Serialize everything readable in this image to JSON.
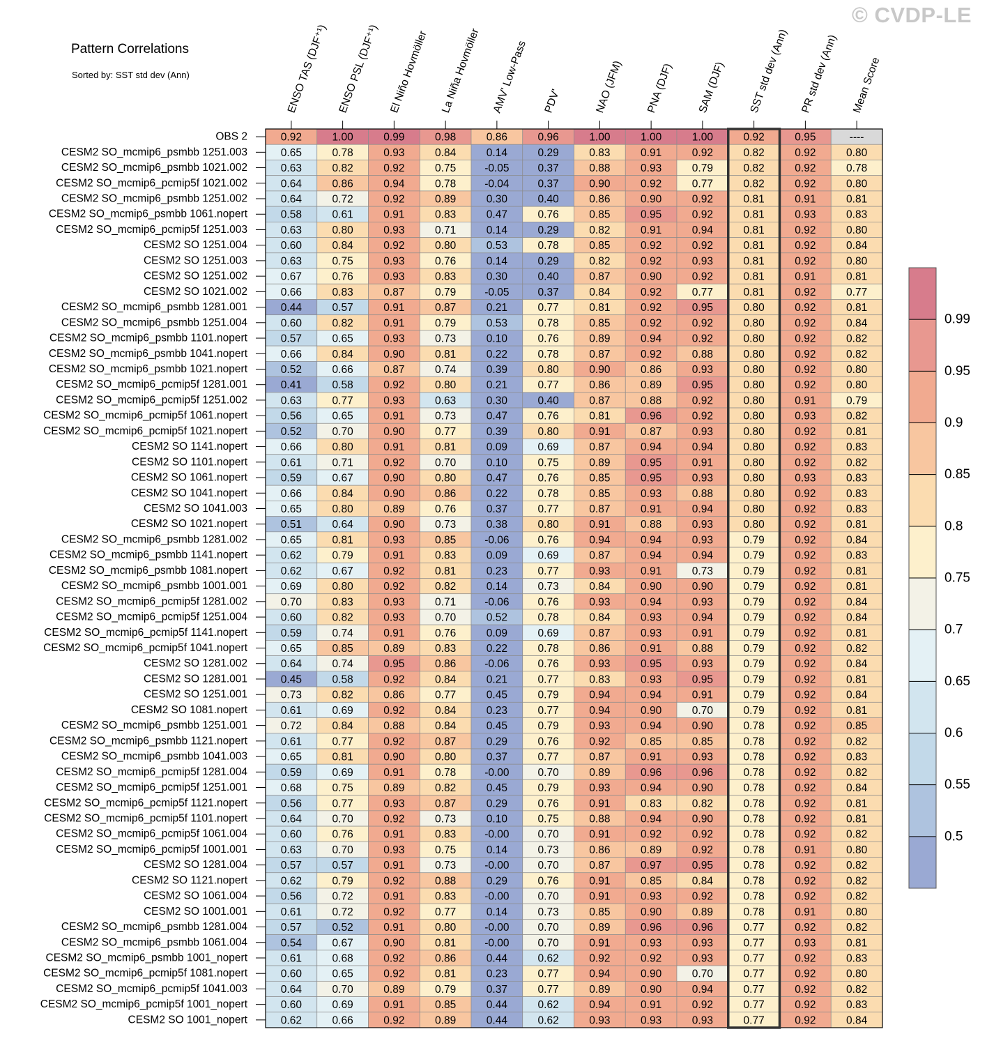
{
  "page": {
    "title": "Pattern Correlations",
    "subtitle": "Sorted by: SST std dev (Ann)",
    "watermark": "© CVDP-LE"
  },
  "chart_data": {
    "type": "heatmap",
    "title": "Pattern Correlations",
    "subtitle": "Sorted by: SST std dev (Ann)",
    "columns": [
      "ENSO TAS (DJF⁺¹)",
      "ENSO PSL (DJF⁺¹)",
      "El Niño Hovmöller",
      "La Niña Hovmöller",
      "AMV' Low-Pass",
      "PDV'",
      "NAO (JFM)",
      "PNA (DJF)",
      "SAM (DJF)",
      "SST std dev (Ann)",
      "PR std dev (Ann)",
      "Mean Score"
    ],
    "highlighted_column": "SST std dev (Ann)",
    "rows": [
      {
        "label": "OBS 2",
        "values": [
          "0.92",
          "1.00",
          "0.99",
          "0.98",
          "0.86",
          "0.96",
          "1.00",
          "1.00",
          "1.00",
          "0.92",
          "0.95",
          "----"
        ]
      },
      {
        "label": "CESM2 SO_mcmip6_psmbb 1251.003",
        "values": [
          "0.65",
          "0.78",
          "0.93",
          "0.84",
          "0.14",
          "0.29",
          "0.83",
          "0.91",
          "0.92",
          "0.82",
          "0.92",
          "0.80"
        ]
      },
      {
        "label": "CESM2 SO_mcmip6_psmbb 1021.002",
        "values": [
          "0.63",
          "0.82",
          "0.92",
          "0.75",
          "-0.05",
          "0.37",
          "0.88",
          "0.93",
          "0.79",
          "0.82",
          "0.92",
          "0.78"
        ]
      },
      {
        "label": "CESM2 SO_mcmip6_pcmip5f 1021.002",
        "values": [
          "0.64",
          "0.86",
          "0.94",
          "0.78",
          "-0.04",
          "0.37",
          "0.90",
          "0.92",
          "0.77",
          "0.82",
          "0.92",
          "0.80"
        ]
      },
      {
        "label": "CESM2 SO_mcmip6_psmbb 1251.002",
        "values": [
          "0.64",
          "0.72",
          "0.92",
          "0.89",
          "0.30",
          "0.40",
          "0.86",
          "0.90",
          "0.92",
          "0.81",
          "0.91",
          "0.81"
        ]
      },
      {
        "label": "CESM2 SO_mcmip6_psmbb 1061.nopert",
        "values": [
          "0.58",
          "0.61",
          "0.91",
          "0.83",
          "0.47",
          "0.76",
          "0.85",
          "0.95",
          "0.92",
          "0.81",
          "0.93",
          "0.83"
        ]
      },
      {
        "label": "CESM2 SO_mcmip6_pcmip5f 1251.003",
        "values": [
          "0.63",
          "0.80",
          "0.93",
          "0.71",
          "0.14",
          "0.29",
          "0.82",
          "0.91",
          "0.94",
          "0.81",
          "0.92",
          "0.80"
        ]
      },
      {
        "label": "CESM2 SO 1251.004",
        "values": [
          "0.60",
          "0.84",
          "0.92",
          "0.80",
          "0.53",
          "0.78",
          "0.85",
          "0.92",
          "0.92",
          "0.81",
          "0.92",
          "0.84"
        ]
      },
      {
        "label": "CESM2 SO 1251.003",
        "values": [
          "0.63",
          "0.75",
          "0.93",
          "0.76",
          "0.14",
          "0.29",
          "0.82",
          "0.92",
          "0.93",
          "0.81",
          "0.92",
          "0.80"
        ]
      },
      {
        "label": "CESM2 SO 1251.002",
        "values": [
          "0.67",
          "0.76",
          "0.93",
          "0.83",
          "0.30",
          "0.40",
          "0.87",
          "0.90",
          "0.92",
          "0.81",
          "0.91",
          "0.81"
        ]
      },
      {
        "label": "CESM2 SO 1021.002",
        "values": [
          "0.66",
          "0.83",
          "0.87",
          "0.79",
          "-0.05",
          "0.37",
          "0.84",
          "0.92",
          "0.77",
          "0.81",
          "0.92",
          "0.77"
        ]
      },
      {
        "label": "CESM2 SO_mcmip6_psmbb 1281.001",
        "values": [
          "0.44",
          "0.57",
          "0.91",
          "0.87",
          "0.21",
          "0.77",
          "0.81",
          "0.92",
          "0.95",
          "0.80",
          "0.92",
          "0.81"
        ]
      },
      {
        "label": "CESM2 SO_mcmip6_psmbb 1251.004",
        "values": [
          "0.60",
          "0.82",
          "0.91",
          "0.79",
          "0.53",
          "0.78",
          "0.85",
          "0.92",
          "0.92",
          "0.80",
          "0.92",
          "0.84"
        ]
      },
      {
        "label": "CESM2 SO_mcmip6_psmbb 1101.nopert",
        "values": [
          "0.57",
          "0.65",
          "0.93",
          "0.73",
          "0.10",
          "0.76",
          "0.89",
          "0.94",
          "0.92",
          "0.80",
          "0.92",
          "0.82"
        ]
      },
      {
        "label": "CESM2 SO_mcmip6_psmbb 1041.nopert",
        "values": [
          "0.66",
          "0.84",
          "0.90",
          "0.81",
          "0.22",
          "0.78",
          "0.87",
          "0.92",
          "0.88",
          "0.80",
          "0.92",
          "0.82"
        ]
      },
      {
        "label": "CESM2 SO_mcmip6_psmbb 1021.nopert",
        "values": [
          "0.52",
          "0.66",
          "0.87",
          "0.74",
          "0.39",
          "0.80",
          "0.90",
          "0.86",
          "0.93",
          "0.80",
          "0.92",
          "0.80"
        ]
      },
      {
        "label": "CESM2 SO_mcmip6_pcmip5f 1281.001",
        "values": [
          "0.41",
          "0.58",
          "0.92",
          "0.80",
          "0.21",
          "0.77",
          "0.86",
          "0.89",
          "0.95",
          "0.80",
          "0.92",
          "0.80"
        ]
      },
      {
        "label": "CESM2 SO_mcmip6_pcmip5f 1251.002",
        "values": [
          "0.63",
          "0.77",
          "0.93",
          "0.63",
          "0.30",
          "0.40",
          "0.87",
          "0.88",
          "0.92",
          "0.80",
          "0.91",
          "0.79"
        ]
      },
      {
        "label": "CESM2 SO_mcmip6_pcmip5f 1061.nopert",
        "values": [
          "0.56",
          "0.65",
          "0.91",
          "0.73",
          "0.47",
          "0.76",
          "0.81",
          "0.96",
          "0.92",
          "0.80",
          "0.93",
          "0.82"
        ]
      },
      {
        "label": "CESM2 SO_mcmip6_pcmip5f 1021.nopert",
        "values": [
          "0.52",
          "0.70",
          "0.90",
          "0.77",
          "0.39",
          "0.80",
          "0.91",
          "0.87",
          "0.93",
          "0.80",
          "0.92",
          "0.81"
        ]
      },
      {
        "label": "CESM2 SO 1141.nopert",
        "values": [
          "0.66",
          "0.80",
          "0.91",
          "0.81",
          "0.09",
          "0.69",
          "0.87",
          "0.94",
          "0.94",
          "0.80",
          "0.92",
          "0.83"
        ]
      },
      {
        "label": "CESM2 SO 1101.nopert",
        "values": [
          "0.61",
          "0.71",
          "0.92",
          "0.70",
          "0.10",
          "0.75",
          "0.89",
          "0.95",
          "0.91",
          "0.80",
          "0.92",
          "0.82"
        ]
      },
      {
        "label": "CESM2 SO 1061.nopert",
        "values": [
          "0.59",
          "0.67",
          "0.90",
          "0.80",
          "0.47",
          "0.76",
          "0.85",
          "0.95",
          "0.93",
          "0.80",
          "0.93",
          "0.83"
        ]
      },
      {
        "label": "CESM2 SO 1041.nopert",
        "values": [
          "0.66",
          "0.84",
          "0.90",
          "0.86",
          "0.22",
          "0.78",
          "0.85",
          "0.93",
          "0.88",
          "0.80",
          "0.92",
          "0.83"
        ]
      },
      {
        "label": "CESM2 SO 1041.003",
        "values": [
          "0.65",
          "0.80",
          "0.89",
          "0.76",
          "0.37",
          "0.77",
          "0.87",
          "0.91",
          "0.94",
          "0.80",
          "0.92",
          "0.83"
        ]
      },
      {
        "label": "CESM2 SO 1021.nopert",
        "values": [
          "0.51",
          "0.64",
          "0.90",
          "0.73",
          "0.38",
          "0.80",
          "0.91",
          "0.88",
          "0.93",
          "0.80",
          "0.92",
          "0.81"
        ]
      },
      {
        "label": "CESM2 SO_mcmip6_psmbb 1281.002",
        "values": [
          "0.65",
          "0.81",
          "0.93",
          "0.85",
          "-0.06",
          "0.76",
          "0.94",
          "0.94",
          "0.93",
          "0.79",
          "0.92",
          "0.84"
        ]
      },
      {
        "label": "CESM2 SO_mcmip6_psmbb 1141.nopert",
        "values": [
          "0.62",
          "0.79",
          "0.91",
          "0.83",
          "0.09",
          "0.69",
          "0.87",
          "0.94",
          "0.94",
          "0.79",
          "0.92",
          "0.83"
        ]
      },
      {
        "label": "CESM2 SO_mcmip6_psmbb 1081.nopert",
        "values": [
          "0.62",
          "0.67",
          "0.92",
          "0.81",
          "0.23",
          "0.77",
          "0.93",
          "0.91",
          "0.73",
          "0.79",
          "0.92",
          "0.81"
        ]
      },
      {
        "label": "CESM2 SO_mcmip6_psmbb 1001.001",
        "values": [
          "0.69",
          "0.80",
          "0.92",
          "0.82",
          "0.14",
          "0.73",
          "0.84",
          "0.90",
          "0.90",
          "0.79",
          "0.92",
          "0.81"
        ]
      },
      {
        "label": "CESM2 SO_mcmip6_pcmip5f 1281.002",
        "values": [
          "0.70",
          "0.83",
          "0.93",
          "0.71",
          "-0.06",
          "0.76",
          "0.93",
          "0.94",
          "0.93",
          "0.79",
          "0.92",
          "0.84"
        ]
      },
      {
        "label": "CESM2 SO_mcmip6_pcmip5f 1251.004",
        "values": [
          "0.60",
          "0.82",
          "0.93",
          "0.70",
          "0.52",
          "0.78",
          "0.84",
          "0.93",
          "0.94",
          "0.79",
          "0.92",
          "0.84"
        ]
      },
      {
        "label": "CESM2 SO_mcmip6_pcmip5f 1141.nopert",
        "values": [
          "0.59",
          "0.74",
          "0.91",
          "0.76",
          "0.09",
          "0.69",
          "0.87",
          "0.93",
          "0.91",
          "0.79",
          "0.92",
          "0.81"
        ]
      },
      {
        "label": "CESM2 SO_mcmip6_pcmip5f 1041.nopert",
        "values": [
          "0.65",
          "0.85",
          "0.89",
          "0.83",
          "0.22",
          "0.78",
          "0.86",
          "0.91",
          "0.88",
          "0.79",
          "0.92",
          "0.82"
        ]
      },
      {
        "label": "CESM2 SO 1281.002",
        "values": [
          "0.64",
          "0.74",
          "0.95",
          "0.86",
          "-0.06",
          "0.76",
          "0.93",
          "0.95",
          "0.93",
          "0.79",
          "0.92",
          "0.84"
        ]
      },
      {
        "label": "CESM2 SO 1281.001",
        "values": [
          "0.45",
          "0.58",
          "0.92",
          "0.84",
          "0.21",
          "0.77",
          "0.83",
          "0.93",
          "0.95",
          "0.79",
          "0.92",
          "0.81"
        ]
      },
      {
        "label": "CESM2 SO 1251.001",
        "values": [
          "0.73",
          "0.82",
          "0.86",
          "0.77",
          "0.45",
          "0.79",
          "0.94",
          "0.94",
          "0.91",
          "0.79",
          "0.92",
          "0.84"
        ]
      },
      {
        "label": "CESM2 SO 1081.nopert",
        "values": [
          "0.61",
          "0.69",
          "0.92",
          "0.84",
          "0.23",
          "0.77",
          "0.94",
          "0.90",
          "0.70",
          "0.79",
          "0.92",
          "0.81"
        ]
      },
      {
        "label": "CESM2 SO_mcmip6_psmbb 1251.001",
        "values": [
          "0.72",
          "0.84",
          "0.88",
          "0.84",
          "0.45",
          "0.79",
          "0.93",
          "0.94",
          "0.90",
          "0.78",
          "0.92",
          "0.85"
        ]
      },
      {
        "label": "CESM2 SO_mcmip6_psmbb 1121.nopert",
        "values": [
          "0.61",
          "0.77",
          "0.92",
          "0.87",
          "0.29",
          "0.76",
          "0.92",
          "0.85",
          "0.85",
          "0.78",
          "0.92",
          "0.82"
        ]
      },
      {
        "label": "CESM2 SO_mcmip6_psmbb 1041.003",
        "values": [
          "0.65",
          "0.81",
          "0.90",
          "0.80",
          "0.37",
          "0.77",
          "0.87",
          "0.91",
          "0.93",
          "0.78",
          "0.92",
          "0.83"
        ]
      },
      {
        "label": "CESM2 SO_mcmip6_pcmip5f 1281.004",
        "values": [
          "0.59",
          "0.69",
          "0.91",
          "0.78",
          "-0.00",
          "0.70",
          "0.89",
          "0.96",
          "0.96",
          "0.78",
          "0.92",
          "0.82"
        ]
      },
      {
        "label": "CESM2 SO_mcmip6_pcmip5f 1251.001",
        "values": [
          "0.68",
          "0.75",
          "0.89",
          "0.82",
          "0.45",
          "0.79",
          "0.93",
          "0.94",
          "0.90",
          "0.78",
          "0.92",
          "0.84"
        ]
      },
      {
        "label": "CESM2 SO_mcmip6_pcmip5f 1121.nopert",
        "values": [
          "0.56",
          "0.77",
          "0.93",
          "0.87",
          "0.29",
          "0.76",
          "0.91",
          "0.83",
          "0.82",
          "0.78",
          "0.92",
          "0.81"
        ]
      },
      {
        "label": "CESM2 SO_mcmip6_pcmip5f 1101.nopert",
        "values": [
          "0.64",
          "0.70",
          "0.92",
          "0.73",
          "0.10",
          "0.75",
          "0.88",
          "0.94",
          "0.90",
          "0.78",
          "0.92",
          "0.81"
        ]
      },
      {
        "label": "CESM2 SO_mcmip6_pcmip5f 1061.004",
        "values": [
          "0.60",
          "0.76",
          "0.91",
          "0.83",
          "-0.00",
          "0.70",
          "0.91",
          "0.92",
          "0.92",
          "0.78",
          "0.92",
          "0.82"
        ]
      },
      {
        "label": "CESM2 SO_mcmip6_pcmip5f 1001.001",
        "values": [
          "0.63",
          "0.70",
          "0.93",
          "0.75",
          "0.14",
          "0.73",
          "0.86",
          "0.89",
          "0.92",
          "0.78",
          "0.91",
          "0.80"
        ]
      },
      {
        "label": "CESM2 SO 1281.004",
        "values": [
          "0.57",
          "0.57",
          "0.91",
          "0.73",
          "-0.00",
          "0.70",
          "0.87",
          "0.97",
          "0.95",
          "0.78",
          "0.92",
          "0.82"
        ]
      },
      {
        "label": "CESM2 SO 1121.nopert",
        "values": [
          "0.62",
          "0.79",
          "0.92",
          "0.88",
          "0.29",
          "0.76",
          "0.91",
          "0.85",
          "0.84",
          "0.78",
          "0.92",
          "0.82"
        ]
      },
      {
        "label": "CESM2 SO 1061.004",
        "values": [
          "0.56",
          "0.72",
          "0.91",
          "0.83",
          "-0.00",
          "0.70",
          "0.91",
          "0.93",
          "0.92",
          "0.78",
          "0.92",
          "0.82"
        ]
      },
      {
        "label": "CESM2 SO 1001.001",
        "values": [
          "0.61",
          "0.72",
          "0.92",
          "0.77",
          "0.14",
          "0.73",
          "0.85",
          "0.90",
          "0.89",
          "0.78",
          "0.91",
          "0.80"
        ]
      },
      {
        "label": "CESM2 SO_mcmip6_psmbb 1281.004",
        "values": [
          "0.57",
          "0.52",
          "0.91",
          "0.80",
          "-0.00",
          "0.70",
          "0.89",
          "0.96",
          "0.96",
          "0.77",
          "0.92",
          "0.82"
        ]
      },
      {
        "label": "CESM2 SO_mcmip6_psmbb 1061.004",
        "values": [
          "0.54",
          "0.67",
          "0.90",
          "0.81",
          "-0.00",
          "0.70",
          "0.91",
          "0.93",
          "0.93",
          "0.77",
          "0.93",
          "0.81"
        ]
      },
      {
        "label": "CESM2 SO_mcmip6_psmbb 1001_nopert",
        "values": [
          "0.61",
          "0.68",
          "0.92",
          "0.86",
          "0.44",
          "0.62",
          "0.92",
          "0.92",
          "0.93",
          "0.77",
          "0.92",
          "0.83"
        ]
      },
      {
        "label": "CESM2 SO_mcmip6_pcmip5f 1081.nopert",
        "values": [
          "0.60",
          "0.65",
          "0.92",
          "0.81",
          "0.23",
          "0.77",
          "0.94",
          "0.90",
          "0.70",
          "0.77",
          "0.92",
          "0.80"
        ]
      },
      {
        "label": "CESM2 SO_mcmip6_pcmip5f 1041.003",
        "values": [
          "0.64",
          "0.70",
          "0.89",
          "0.79",
          "0.37",
          "0.77",
          "0.89",
          "0.90",
          "0.94",
          "0.77",
          "0.92",
          "0.82"
        ]
      },
      {
        "label": "CESM2 SO_mcmip6_pcmip5f 1001_nopert",
        "values": [
          "0.60",
          "0.69",
          "0.91",
          "0.85",
          "0.44",
          "0.62",
          "0.94",
          "0.91",
          "0.92",
          "0.77",
          "0.92",
          "0.83"
        ]
      },
      {
        "label": "CESM2 SO 1001_nopert",
        "values": [
          "0.62",
          "0.66",
          "0.92",
          "0.89",
          "0.44",
          "0.62",
          "0.93",
          "0.93",
          "0.93",
          "0.77",
          "0.92",
          "0.84"
        ]
      }
    ],
    "colorbar": {
      "labels": [
        "0.99",
        "0.95",
        "0.9",
        "0.85",
        "0.8",
        "0.75",
        "0.7",
        "0.65",
        "0.6",
        "0.55",
        "0.5"
      ],
      "thresholds": [
        0.5,
        0.55,
        0.6,
        0.65,
        0.7,
        0.75,
        0.8,
        0.85,
        0.9,
        0.95,
        0.99
      ],
      "colors": [
        "#9aa9d3",
        "#aec3df",
        "#c2d9e9",
        "#d2e5ef",
        "#e4f1f5",
        "#f3f2e7",
        "#fdf0cc",
        "#fbdcb0",
        "#f8c6a0",
        "#f1aa90",
        "#e89890",
        "#d77c8c"
      ],
      "missing_color": "#d9d9d9"
    }
  }
}
